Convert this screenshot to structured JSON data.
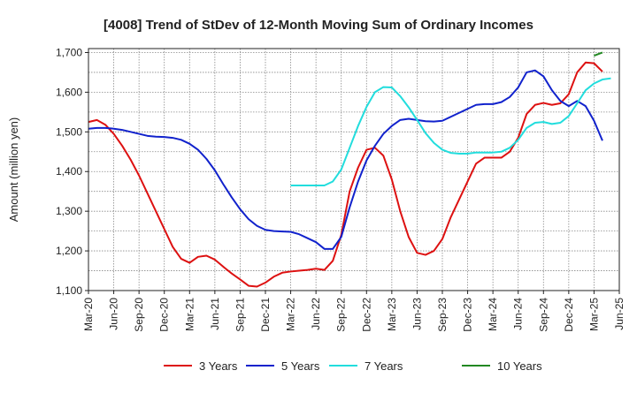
{
  "chart_data": {
    "type": "line",
    "title": "[4008]  Trend of StDev of 12-Month Moving Sum of Ordinary Incomes",
    "xlabel": "",
    "ylabel": "Amount (million yen)",
    "ylim": [
      1100,
      1710
    ],
    "yticks": [
      1100,
      1200,
      1300,
      1400,
      1500,
      1600,
      1700
    ],
    "ytick_labels": [
      "1,100",
      "1,200",
      "1,300",
      "1,400",
      "1,500",
      "1,600",
      "1,700"
    ],
    "x_tick_labels": [
      "Mar-20",
      "Jun-20",
      "Sep-20",
      "Dec-20",
      "Mar-21",
      "Jun-21",
      "Sep-21",
      "Dec-21",
      "Mar-22",
      "Jun-22",
      "Sep-22",
      "Dec-22",
      "Mar-23",
      "Jun-23",
      "Sep-23",
      "Dec-23",
      "Mar-24",
      "Jun-24",
      "Sep-24",
      "Dec-24",
      "Mar-25",
      "Jun-25"
    ],
    "x_start": "Mar-20",
    "months_total": 63,
    "grid": true,
    "legend_position": "bottom",
    "series": [
      {
        "name": "3 Years",
        "color": "#dd1111",
        "start_month": 0,
        "values": [
          1525,
          1530,
          1518,
          1495,
          1465,
          1430,
          1390,
          1345,
          1300,
          1255,
          1210,
          1180,
          1170,
          1185,
          1188,
          1178,
          1160,
          1143,
          1128,
          1112,
          1110,
          1120,
          1135,
          1145,
          1148,
          1150,
          1152,
          1155,
          1152,
          1175,
          1240,
          1350,
          1410,
          1455,
          1460,
          1440,
          1380,
          1300,
          1235,
          1195,
          1190,
          1200,
          1230,
          1285,
          1330,
          1375,
          1420,
          1435,
          1435,
          1435,
          1450,
          1485,
          1545,
          1568,
          1573,
          1568,
          1572,
          1595,
          1650,
          1675,
          1673,
          1652
        ]
      },
      {
        "name": "5 Years",
        "color": "#1122cc",
        "start_month": 0,
        "values": [
          1508,
          1510,
          1510,
          1508,
          1505,
          1500,
          1495,
          1490,
          1488,
          1487,
          1485,
          1480,
          1470,
          1455,
          1432,
          1403,
          1368,
          1335,
          1305,
          1280,
          1263,
          1253,
          1250,
          1249,
          1248,
          1242,
          1232,
          1222,
          1205,
          1205,
          1235,
          1310,
          1375,
          1428,
          1465,
          1495,
          1515,
          1530,
          1533,
          1530,
          1527,
          1526,
          1528,
          1538,
          1548,
          1558,
          1568,
          1570,
          1570,
          1575,
          1588,
          1612,
          1650,
          1655,
          1640,
          1605,
          1578,
          1565,
          1578,
          1565,
          1528,
          1478
        ]
      },
      {
        "name": "7 Years",
        "color": "#22dddd",
        "start_month": 24,
        "values": [
          1365,
          1365,
          1365,
          1365,
          1365,
          1375,
          1405,
          1460,
          1515,
          1563,
          1600,
          1613,
          1612,
          1590,
          1562,
          1530,
          1497,
          1472,
          1455,
          1447,
          1445,
          1445,
          1448,
          1448,
          1448,
          1450,
          1460,
          1480,
          1510,
          1523,
          1525,
          1520,
          1523,
          1540,
          1572,
          1605,
          1622,
          1632,
          1635
        ]
      },
      {
        "name": "10 Years",
        "color": "#228822",
        "start_month": 60,
        "values": [
          1692,
          1700
        ]
      }
    ]
  }
}
